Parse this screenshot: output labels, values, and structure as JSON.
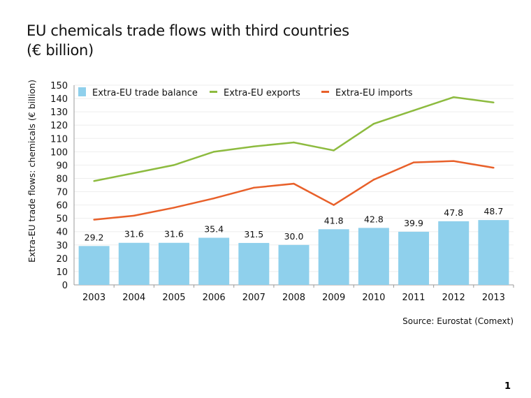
{
  "title_line1": "EU chemicals trade flows with third countries",
  "title_line2": "(€ billion)",
  "page_number": "1",
  "chart_data": {
    "type": "bar+line",
    "ylabel": "Extra-EU trade flows: chemicals (€ billion)",
    "ylim": [
      0,
      150
    ],
    "yticks": [
      0,
      10,
      20,
      30,
      40,
      50,
      60,
      70,
      80,
      90,
      100,
      110,
      120,
      130,
      140,
      150
    ],
    "grid": true,
    "legend_position": "top",
    "categories": [
      "2003",
      "2004",
      "2005",
      "2006",
      "2007",
      "2008",
      "2009",
      "2010",
      "2011",
      "2012",
      "2013"
    ],
    "series": [
      {
        "name": "Extra-EU trade balance",
        "type": "bar",
        "color": "#8fd0ec",
        "values": [
          29.2,
          31.6,
          31.6,
          35.4,
          31.5,
          30.0,
          41.8,
          42.8,
          39.9,
          47.8,
          48.7
        ],
        "labels": [
          "29.2",
          "31.6",
          "31.6",
          "35.4",
          "31.5",
          "30.0",
          "41.8",
          "42.8",
          "39.9",
          "47.8",
          "48.7"
        ]
      },
      {
        "name": "Extra-EU exports",
        "type": "line",
        "color": "#8dbb3f",
        "values": [
          78,
          84,
          90,
          100,
          104,
          107,
          101,
          121,
          131,
          141,
          137
        ]
      },
      {
        "name": "Extra-EU imports",
        "type": "line",
        "color": "#e8602a",
        "values": [
          49,
          52,
          58,
          65,
          73,
          76,
          60,
          79,
          92,
          93,
          88
        ]
      }
    ],
    "source": "Source: Eurostat (Comext)"
  }
}
